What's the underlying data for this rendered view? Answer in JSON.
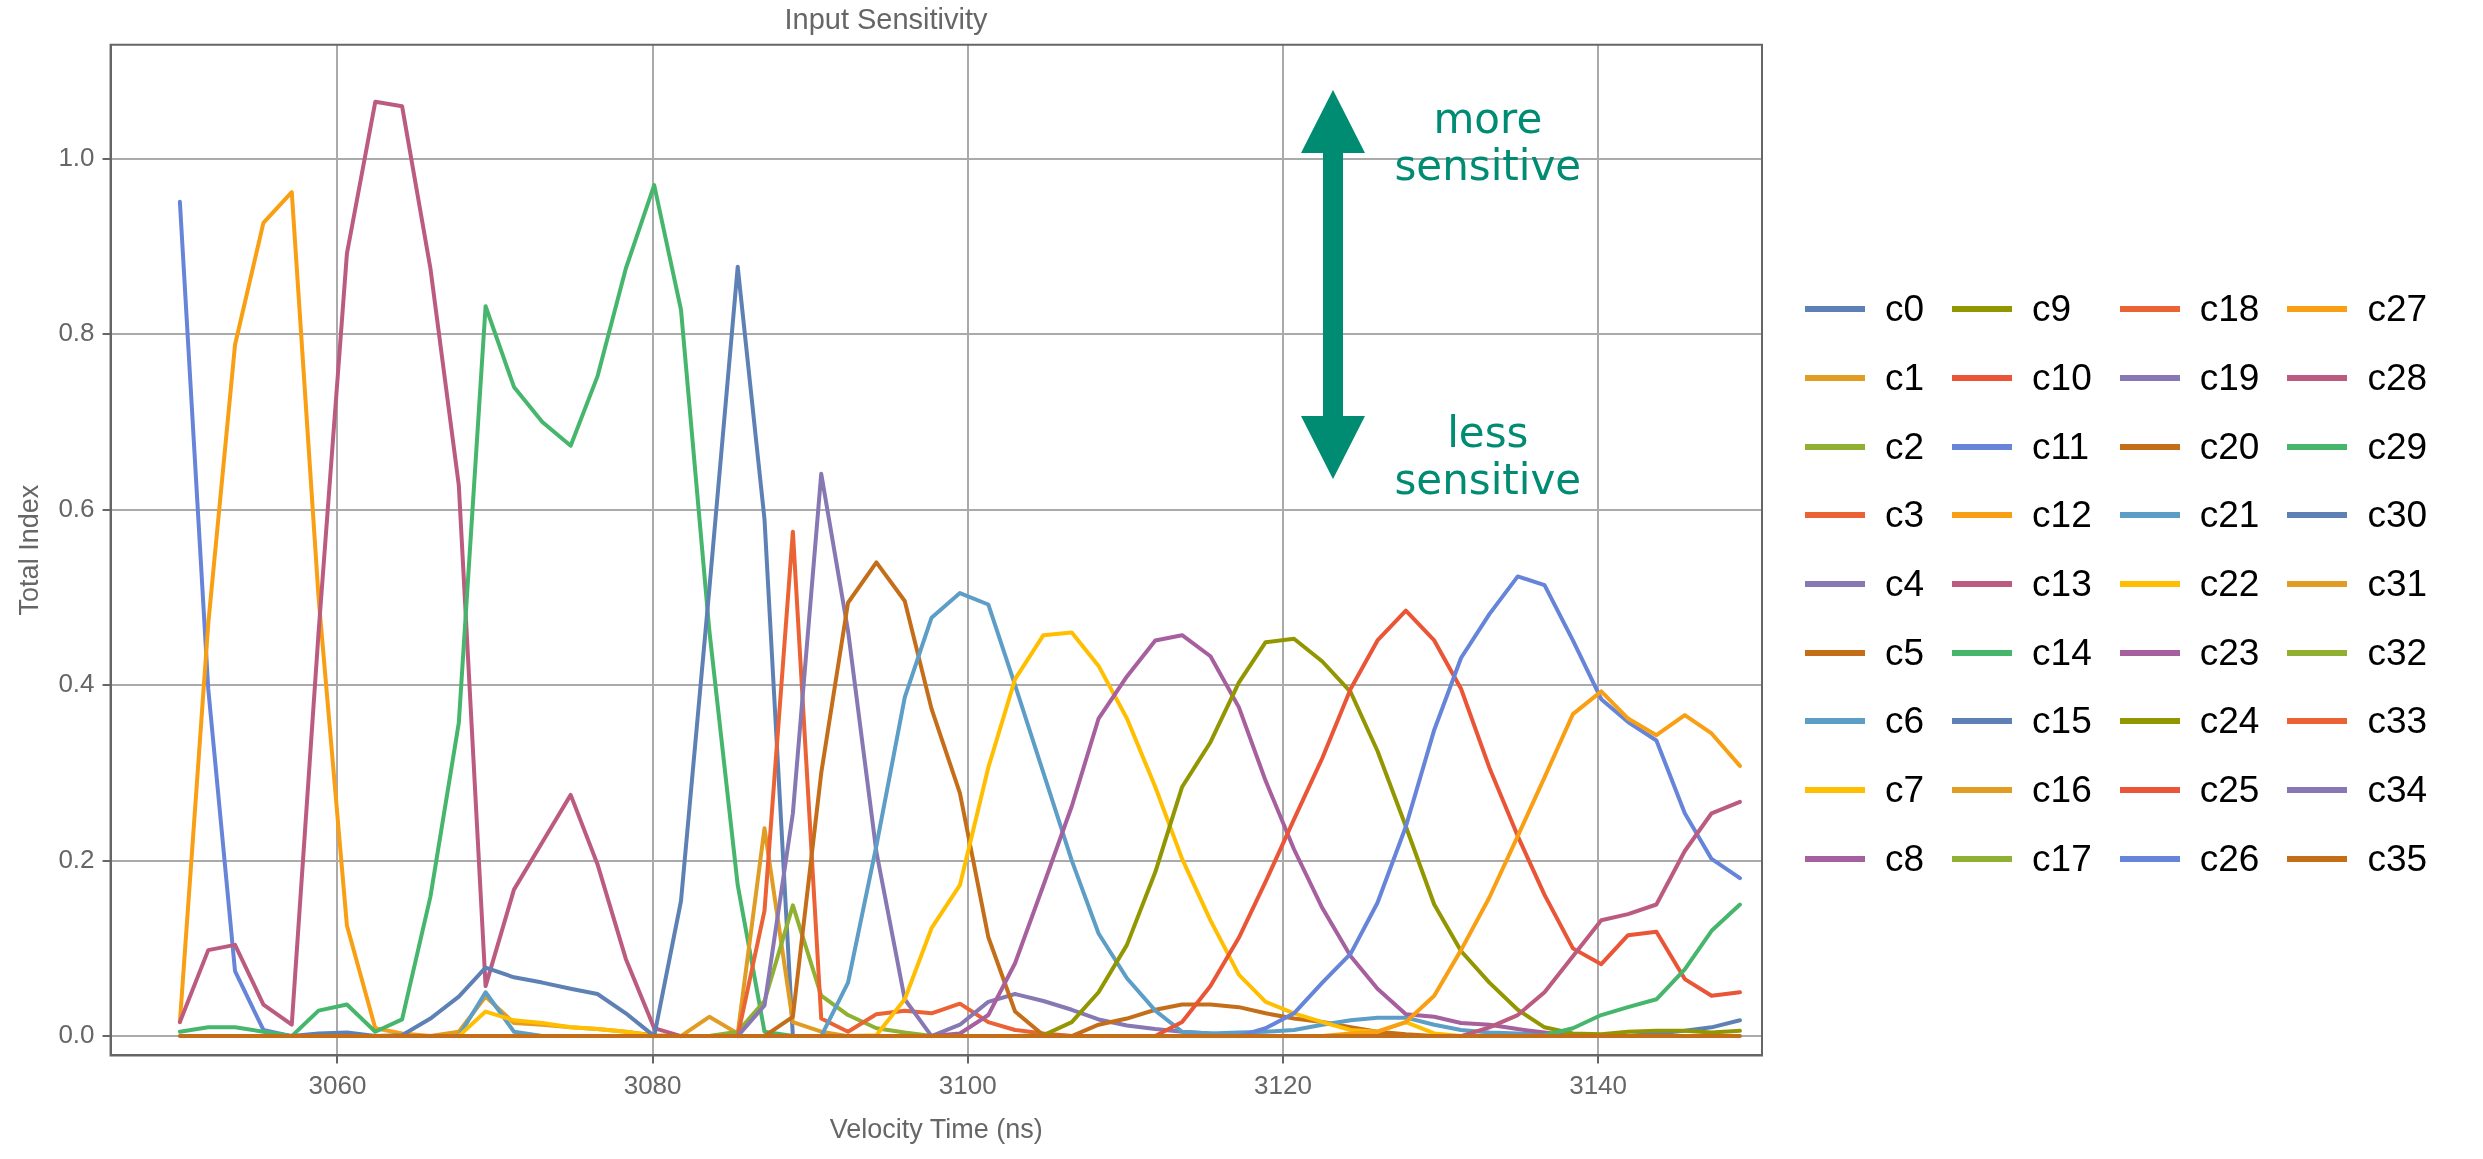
{
  "chart_data": {
    "type": "line",
    "title": "Input Sensitivity",
    "xlabel": "Velocity Time (ns)",
    "ylabel": "Total Index",
    "annotations": [
      "more sensitive",
      "less sensitive"
    ],
    "xlim": [
      3045.6,
      3150.4
    ],
    "xticks": [
      3060,
      3080,
      3100,
      3120,
      3140
    ],
    "ylim": [
      -0.022,
      1.13
    ],
    "yticks": [
      {
        "value": 0,
        "label": "0.0"
      },
      {
        "value": 0.2,
        "label": "0.2"
      },
      {
        "value": 0.4,
        "label": "0.4"
      },
      {
        "value": 0.6,
        "label": "0.6"
      },
      {
        "value": 0.8,
        "label": "0.8"
      },
      {
        "value": 1,
        "label": "1.0"
      }
    ],
    "grid": true,
    "legend": "right",
    "x": [
      3050.0,
      3051.8,
      3053.5,
      3055.3,
      3057.1,
      3058.8,
      3060.6,
      3062.4,
      3064.1,
      3065.9,
      3067.7,
      3069.4,
      3071.2,
      3073.0,
      3074.8,
      3076.5,
      3078.3,
      3080.1,
      3081.8,
      3083.6,
      3085.4,
      3087.1,
      3088.9,
      3090.7,
      3092.4,
      3094.2,
      3096.0,
      3097.7,
      3099.5,
      3101.3,
      3103.0,
      3104.8,
      3106.6,
      3108.3,
      3110.1,
      3111.9,
      3113.6,
      3115.4,
      3117.2,
      3118.9,
      3120.7,
      3122.5,
      3124.3,
      3126.0,
      3127.8,
      3129.6,
      3131.3,
      3133.1,
      3134.9,
      3136.6,
      3138.4,
      3140.2,
      3141.9,
      3143.7,
      3145.5,
      3147.2,
      3149.0
    ],
    "series": [
      {
        "name": "c0",
        "color": "#5e81b5",
        "values": [
          null,
          null,
          null,
          null,
          null,
          null,
          null,
          null,
          null,
          null,
          null,
          null,
          null,
          null,
          null,
          null,
          null,
          null,
          null,
          null,
          null,
          null,
          null,
          null,
          null,
          null,
          null,
          null,
          null,
          null,
          null,
          null,
          null,
          null,
          null,
          null,
          null,
          null,
          null,
          null,
          null,
          null,
          null,
          null,
          null,
          null,
          null,
          null,
          null,
          null,
          null,
          null,
          null,
          null,
          null,
          null,
          null
        ]
      },
      {
        "name": "c1",
        "color": "#e19c24",
        "values": [
          null,
          null,
          null,
          null,
          null,
          null,
          null,
          null,
          null,
          0,
          0.005,
          0.045,
          0.015,
          0.013,
          0.01,
          0.008,
          0.005,
          0.001,
          0,
          null,
          null,
          null,
          null,
          null,
          null,
          null,
          null,
          null,
          null,
          null,
          null,
          null,
          null,
          null,
          null,
          null,
          null,
          null,
          null,
          null,
          null,
          null,
          null,
          null,
          null,
          null,
          null,
          null,
          null,
          null,
          null,
          null,
          null,
          null,
          null,
          null,
          null
        ]
      },
      {
        "name": "c2",
        "color": "#8fb032",
        "values": [
          null,
          null,
          null,
          null,
          null,
          null,
          null,
          null,
          null,
          null,
          null,
          null,
          null,
          null,
          null,
          null,
          null,
          null,
          null,
          null,
          null,
          null,
          null,
          null,
          null,
          null,
          null,
          null,
          null,
          null,
          null,
          null,
          null,
          null,
          null,
          null,
          null,
          null,
          null,
          null,
          null,
          null,
          null,
          null,
          null,
          null,
          null,
          null,
          null,
          null,
          null,
          null,
          null,
          null,
          null,
          null,
          null
        ]
      },
      {
        "name": "c3",
        "color": "#eb6235",
        "values": [
          null,
          null,
          null,
          null,
          null,
          null,
          null,
          null,
          null,
          null,
          null,
          null,
          null,
          null,
          null,
          null,
          null,
          null,
          null,
          null,
          null,
          null,
          null,
          null,
          null,
          null,
          null,
          null,
          null,
          null,
          null,
          null,
          null,
          null,
          null,
          null,
          null,
          null,
          null,
          null,
          null,
          null,
          null,
          null,
          null,
          null,
          null,
          null,
          null,
          null,
          null,
          null,
          null,
          null,
          null,
          null,
          null
        ]
      },
      {
        "name": "c4",
        "color": "#8778b3",
        "values": [
          null,
          null,
          null,
          null,
          null,
          null,
          null,
          null,
          null,
          null,
          null,
          null,
          null,
          null,
          null,
          null,
          null,
          null,
          null,
          null,
          null,
          null,
          null,
          null,
          null,
          null,
          null,
          null,
          null,
          null,
          null,
          null,
          null,
          null,
          null,
          null,
          null,
          null,
          null,
          null,
          null,
          null,
          null,
          null,
          null,
          null,
          null,
          null,
          null,
          null,
          null,
          null,
          null,
          null,
          null,
          null,
          null
        ]
      },
      {
        "name": "c5",
        "color": "#c56e1a",
        "values": [
          null,
          null,
          null,
          null,
          null,
          null,
          null,
          null,
          null,
          null,
          null,
          null,
          null,
          null,
          null,
          null,
          null,
          null,
          null,
          null,
          null,
          null,
          null,
          null,
          null,
          null,
          null,
          null,
          null,
          null,
          null,
          null,
          null,
          null,
          null,
          null,
          null,
          null,
          null,
          null,
          null,
          null,
          null,
          null,
          null,
          null,
          null,
          null,
          null,
          null,
          null,
          null,
          null,
          null,
          null,
          null,
          null
        ]
      },
      {
        "name": "c6",
        "color": "#5d9ec7",
        "values": [
          null,
          null,
          null,
          null,
          null,
          null,
          null,
          null,
          null,
          null,
          0,
          0.05,
          0.005,
          0,
          null,
          null,
          null,
          null,
          null,
          null,
          null,
          null,
          null,
          null,
          null,
          null,
          null,
          null,
          null,
          null,
          null,
          null,
          null,
          null,
          null,
          null,
          null,
          null,
          null,
          null,
          null,
          null,
          null,
          null,
          null,
          null,
          null,
          null,
          null,
          null,
          null,
          null,
          null,
          null,
          null,
          null,
          null
        ]
      },
      {
        "name": "c7",
        "color": "#ffbf00",
        "values": [
          null,
          null,
          null,
          null,
          null,
          null,
          null,
          null,
          null,
          null,
          0,
          0.028,
          0.018,
          0.015,
          0.01,
          0.008,
          0.005,
          0,
          null,
          null,
          null,
          null,
          null,
          null,
          null,
          null,
          null,
          null,
          null,
          null,
          null,
          null,
          null,
          null,
          null,
          null,
          null,
          null,
          null,
          null,
          null,
          null,
          null,
          null,
          null,
          null,
          null,
          null,
          null,
          null,
          null,
          null,
          null,
          null,
          null,
          null,
          null
        ]
      },
      {
        "name": "c8",
        "color": "#a5609d",
        "values": [
          null,
          null,
          null,
          null,
          null,
          null,
          null,
          null,
          null,
          null,
          null,
          null,
          null,
          null,
          null,
          null,
          null,
          null,
          null,
          null,
          null,
          null,
          null,
          null,
          null,
          null,
          null,
          null,
          null,
          null,
          null,
          null,
          null,
          null,
          null,
          null,
          null,
          null,
          null,
          null,
          null,
          null,
          null,
          null,
          null,
          null,
          null,
          null,
          null,
          null,
          null,
          null,
          null,
          null,
          null,
          null,
          null
        ]
      },
      {
        "name": "c9",
        "color": "#929600",
        "values": [
          null,
          null,
          null,
          null,
          null,
          null,
          null,
          null,
          null,
          null,
          null,
          null,
          null,
          null,
          null,
          null,
          null,
          null,
          null,
          null,
          null,
          null,
          null,
          null,
          null,
          null,
          null,
          null,
          null,
          null,
          null,
          null,
          null,
          null,
          null,
          null,
          null,
          null,
          null,
          null,
          null,
          null,
          null,
          null,
          null,
          null,
          null,
          null,
          null,
          null,
          null,
          null,
          null,
          null,
          null,
          null,
          null
        ]
      },
      {
        "name": "c10",
        "color": "#e95536",
        "values": [
          null,
          null,
          null,
          null,
          null,
          null,
          null,
          null,
          null,
          null,
          null,
          null,
          null,
          null,
          null,
          null,
          null,
          null,
          null,
          null,
          null,
          null,
          null,
          null,
          null,
          null,
          null,
          null,
          null,
          null,
          null,
          null,
          null,
          null,
          null,
          null,
          null,
          null,
          null,
          null,
          null,
          null,
          null,
          null,
          null,
          null,
          null,
          null,
          null,
          null,
          null,
          null,
          null,
          null,
          null,
          null,
          null
        ]
      },
      {
        "name": "c11",
        "color": "#6685d9",
        "values": [
          0.951,
          0.396,
          0.074,
          0.007,
          0,
          null,
          null,
          null,
          null,
          null,
          null,
          null,
          null,
          null,
          null,
          null,
          null,
          null,
          null,
          null,
          null,
          null,
          null,
          null,
          null,
          null,
          null,
          null,
          null,
          null,
          null,
          null,
          null,
          null,
          null,
          null,
          null,
          null,
          null,
          null,
          null,
          null,
          null,
          null,
          null,
          null,
          null,
          null,
          null,
          null,
          null,
          null,
          null,
          null,
          null,
          null,
          null
        ]
      },
      {
        "name": "c12",
        "color": "#f89f13",
        "values": [
          0.016,
          0.47,
          0.788,
          0.927,
          0.962,
          0.5,
          0.126,
          0.009,
          0.003,
          0,
          null,
          null,
          null,
          null,
          null,
          null,
          null,
          null,
          null,
          null,
          null,
          null,
          null,
          null,
          null,
          null,
          null,
          null,
          null,
          null,
          null,
          null,
          null,
          null,
          null,
          null,
          null,
          null,
          null,
          null,
          null,
          null,
          null,
          null,
          null,
          null,
          null,
          null,
          null,
          null,
          null,
          null,
          null,
          null,
          null,
          null,
          null
        ]
      },
      {
        "name": "c13",
        "color": "#bc5b80",
        "values": [
          0.016,
          0.098,
          0.104,
          0.036,
          0.013,
          0.46,
          0.892,
          1.065,
          1.06,
          0.875,
          0.628,
          0.057,
          0.167,
          0.221,
          0.275,
          0.196,
          0.088,
          0.009,
          0,
          null,
          null,
          null,
          null,
          null,
          null,
          null,
          null,
          null,
          null,
          null,
          null,
          null,
          null,
          null,
          null,
          null,
          null,
          null,
          null,
          null,
          null,
          null,
          null,
          null,
          null,
          null,
          null,
          null,
          null,
          null,
          null,
          null,
          null,
          null,
          null,
          null,
          null
        ]
      },
      {
        "name": "c14",
        "color": "#47b66d",
        "values": [
          0.005,
          0.01,
          0.01,
          0.005,
          0,
          0.029,
          0.036,
          0.005,
          0.019,
          0.159,
          0.357,
          0.832,
          0.74,
          0.7,
          0.673,
          0.752,
          0.875,
          0.97,
          0.828,
          0.462,
          0.172,
          0.005,
          0,
          null,
          null,
          null,
          null,
          null,
          null,
          null,
          null,
          null,
          null,
          null,
          null,
          null,
          null,
          null,
          null,
          null,
          null,
          null,
          null,
          null,
          null,
          null,
          null,
          null,
          null,
          null,
          null,
          null,
          null,
          null,
          null,
          null,
          null
        ]
      },
      {
        "name": "c15",
        "color": "#5e81b5",
        "values": [
          null,
          null,
          null,
          null,
          0,
          0.003,
          0.004,
          0,
          0.001,
          0.02,
          0.045,
          0.078,
          0.067,
          0.061,
          0.054,
          0.048,
          0.026,
          0,
          0.154,
          0.51,
          0.877,
          0.589,
          0,
          null,
          null,
          null,
          null,
          null,
          null,
          null,
          null,
          null,
          null,
          null,
          null,
          null,
          null,
          null,
          null,
          null,
          null,
          null,
          null,
          null,
          null,
          null,
          null,
          null,
          null,
          null,
          null,
          null,
          0,
          0.003,
          0.006,
          0.01,
          0.018
        ]
      },
      {
        "name": "c16",
        "color": "#e19c24",
        "values": [
          null,
          null,
          null,
          null,
          null,
          null,
          null,
          null,
          null,
          null,
          null,
          null,
          null,
          null,
          null,
          null,
          null,
          null,
          0,
          0.022,
          0.003,
          0.237,
          0.016,
          0.005,
          0,
          null,
          null,
          null,
          null,
          null,
          null,
          null,
          null,
          null,
          null,
          null,
          null,
          null,
          null,
          null,
          null,
          null,
          null,
          null,
          null,
          null,
          null,
          null,
          null,
          null,
          null,
          null,
          null,
          null,
          null,
          null,
          null
        ]
      },
      {
        "name": "c17",
        "color": "#8fb032",
        "values": [
          null,
          null,
          null,
          null,
          null,
          null,
          null,
          null,
          null,
          null,
          null,
          null,
          null,
          null,
          null,
          null,
          null,
          null,
          null,
          0,
          0.005,
          0.04,
          0.149,
          0.046,
          0.024,
          0.009,
          0.004,
          0,
          null,
          null,
          null,
          null,
          null,
          null,
          null,
          null,
          null,
          null,
          null,
          null,
          null,
          null,
          null,
          null,
          null,
          null,
          null,
          null,
          null,
          null,
          null,
          null,
          null,
          null,
          null,
          null,
          null
        ]
      },
      {
        "name": "c18",
        "color": "#eb6235",
        "values": [
          null,
          null,
          null,
          null,
          null,
          null,
          null,
          null,
          null,
          null,
          null,
          null,
          null,
          null,
          null,
          null,
          null,
          null,
          null,
          null,
          0,
          0.143,
          0.575,
          0.02,
          0.005,
          0.025,
          0.029,
          0.026,
          0.037,
          0.016,
          0.007,
          0.003,
          0,
          null,
          null,
          null,
          null,
          null,
          null,
          null,
          null,
          null,
          null,
          null,
          null,
          null,
          null,
          null,
          null,
          null,
          null,
          null,
          null,
          null,
          null,
          null,
          null
        ]
      },
      {
        "name": "c19",
        "color": "#8778b3",
        "values": [
          null,
          null,
          null,
          null,
          null,
          null,
          null,
          null,
          null,
          null,
          null,
          null,
          null,
          null,
          null,
          null,
          null,
          null,
          null,
          null,
          0,
          0.035,
          0.254,
          0.641,
          0.462,
          0.21,
          0.042,
          0,
          0.013,
          0.039,
          0.048,
          0.04,
          0.03,
          0.019,
          0.012,
          0.008,
          0.005,
          0.003,
          0,
          null,
          null,
          null,
          null,
          null,
          null,
          null,
          null,
          null,
          null,
          null,
          null,
          null,
          null,
          null,
          null,
          null,
          null
        ]
      },
      {
        "name": "c20",
        "color": "#c56e1a",
        "values": [
          null,
          null,
          null,
          null,
          null,
          null,
          null,
          null,
          null,
          null,
          null,
          null,
          null,
          null,
          null,
          null,
          null,
          null,
          null,
          null,
          null,
          0,
          0.022,
          0.3,
          0.494,
          0.54,
          0.496,
          0.373,
          0.277,
          0.113,
          0.028,
          0.001,
          0,
          0.013,
          0.02,
          0.03,
          0.036,
          0.036,
          0.033,
          0.026,
          0.02,
          0.016,
          0.01,
          0.005,
          0.002,
          0,
          null,
          null,
          null,
          null,
          null,
          null,
          null,
          null,
          null,
          null,
          null
        ]
      },
      {
        "name": "c21",
        "color": "#5d9ec7",
        "values": [
          null,
          null,
          null,
          null,
          null,
          null,
          null,
          null,
          null,
          null,
          null,
          null,
          null,
          null,
          null,
          null,
          null,
          null,
          null,
          null,
          null,
          null,
          null,
          0,
          0.061,
          0.217,
          0.386,
          0.477,
          0.505,
          0.492,
          0.4,
          0.3,
          0.2,
          0.117,
          0.066,
          0.029,
          0.005,
          0.003,
          0.004,
          0.005,
          0.007,
          0.013,
          0.018,
          0.021,
          0.021,
          0.013,
          0.007,
          0.004,
          0.003,
          0.001,
          0,
          null,
          null,
          null,
          null,
          null,
          null
        ]
      },
      {
        "name": "c22",
        "color": "#ffbf00",
        "values": [
          null,
          null,
          null,
          null,
          null,
          null,
          null,
          null,
          null,
          null,
          null,
          null,
          null,
          null,
          null,
          null,
          null,
          null,
          null,
          null,
          null,
          null,
          null,
          null,
          0,
          0.001,
          0.042,
          0.123,
          0.172,
          0.306,
          0.407,
          0.457,
          0.46,
          0.422,
          0.362,
          0.284,
          0.202,
          0.132,
          0.07,
          0.039,
          0.026,
          0.016,
          0.007,
          0.005,
          0.016,
          0.003,
          0,
          null,
          null,
          null,
          null,
          null,
          null,
          null,
          null,
          null,
          null
        ]
      },
      {
        "name": "c23",
        "color": "#a5609d",
        "values": [
          null,
          null,
          null,
          null,
          null,
          null,
          null,
          null,
          null,
          null,
          null,
          null,
          null,
          null,
          null,
          null,
          null,
          null,
          null,
          null,
          null,
          null,
          null,
          null,
          null,
          null,
          null,
          0,
          0.003,
          0.024,
          0.083,
          0.172,
          0.262,
          0.362,
          0.41,
          0.451,
          0.457,
          0.433,
          0.375,
          0.291,
          0.213,
          0.146,
          0.091,
          0.054,
          0.025,
          0.022,
          0.015,
          0.013,
          0.008,
          0.004,
          0,
          null,
          null,
          null,
          null,
          null,
          null
        ]
      },
      {
        "name": "c24",
        "color": "#929600",
        "values": [
          null,
          null,
          null,
          null,
          null,
          null,
          null,
          null,
          null,
          null,
          null,
          null,
          null,
          null,
          null,
          null,
          null,
          null,
          null,
          null,
          null,
          null,
          null,
          null,
          null,
          null,
          null,
          null,
          null,
          null,
          0,
          0.001,
          0.016,
          0.05,
          0.104,
          0.187,
          0.284,
          0.335,
          0.403,
          0.449,
          0.453,
          0.427,
          0.392,
          0.325,
          0.239,
          0.15,
          0.097,
          0.061,
          0.03,
          0.01,
          0.003,
          0.002,
          0.005,
          0.006,
          0.006,
          0.004,
          0.006
        ]
      },
      {
        "name": "c25",
        "color": "#e95536",
        "values": [
          null,
          null,
          null,
          null,
          null,
          null,
          null,
          null,
          null,
          null,
          null,
          null,
          null,
          null,
          null,
          null,
          null,
          null,
          null,
          null,
          null,
          null,
          null,
          null,
          null,
          null,
          null,
          null,
          null,
          null,
          null,
          null,
          null,
          null,
          null,
          0,
          0.016,
          0.057,
          0.112,
          0.176,
          0.247,
          0.317,
          0.396,
          0.451,
          0.485,
          0.451,
          0.396,
          0.306,
          0.228,
          0.161,
          0.1,
          0.082,
          0.115,
          0.119,
          0.065,
          0.046,
          0.05
        ]
      },
      {
        "name": "c26",
        "color": "#6685d9",
        "values": [
          null,
          null,
          null,
          null,
          null,
          null,
          null,
          null,
          null,
          null,
          null,
          null,
          null,
          null,
          null,
          null,
          null,
          null,
          null,
          null,
          null,
          null,
          null,
          null,
          null,
          null,
          null,
          null,
          null,
          null,
          null,
          null,
          null,
          null,
          null,
          null,
          null,
          null,
          0,
          0.009,
          0.026,
          0.061,
          0.094,
          0.152,
          0.239,
          0.349,
          0.431,
          0.481,
          0.524,
          0.514,
          0.451,
          0.384,
          0.358,
          0.337,
          0.254,
          0.202,
          0.18
        ]
      },
      {
        "name": "c27",
        "color": "#f89f13",
        "values": [
          null,
          null,
          null,
          null,
          null,
          null,
          null,
          null,
          null,
          null,
          null,
          null,
          null,
          null,
          null,
          null,
          null,
          null,
          null,
          null,
          null,
          null,
          null,
          null,
          null,
          null,
          null,
          null,
          null,
          null,
          null,
          null,
          null,
          null,
          null,
          null,
          null,
          null,
          null,
          null,
          null,
          0,
          0.003,
          0.005,
          0.016,
          0.046,
          0.098,
          0.158,
          0.228,
          0.295,
          0.367,
          0.393,
          0.362,
          0.343,
          0.366,
          0.345,
          0.308
        ]
      },
      {
        "name": "c28",
        "color": "#bc5b80",
        "values": [
          null,
          null,
          null,
          null,
          null,
          null,
          null,
          null,
          null,
          null,
          null,
          null,
          null,
          null,
          null,
          null,
          null,
          null,
          null,
          null,
          null,
          null,
          null,
          null,
          null,
          null,
          null,
          null,
          null,
          null,
          null,
          null,
          null,
          null,
          null,
          null,
          null,
          null,
          null,
          null,
          null,
          null,
          null,
          null,
          null,
          null,
          0,
          0.01,
          0.024,
          0.05,
          0.091,
          0.132,
          0.139,
          0.15,
          0.211,
          0.254,
          0.267
        ]
      },
      {
        "name": "c29",
        "color": "#47b66d",
        "values": [
          null,
          null,
          null,
          null,
          null,
          null,
          null,
          null,
          null,
          null,
          null,
          null,
          null,
          null,
          null,
          null,
          null,
          null,
          null,
          null,
          null,
          null,
          null,
          null,
          null,
          null,
          null,
          null,
          null,
          null,
          null,
          null,
          null,
          null,
          null,
          null,
          null,
          null,
          null,
          null,
          null,
          null,
          null,
          null,
          null,
          null,
          null,
          null,
          0,
          0.001,
          0.009,
          0.024,
          0.033,
          0.042,
          0.076,
          0.12,
          0.15
        ]
      },
      {
        "name": "c30",
        "color": "#5e81b5",
        "values": [
          null,
          null,
          null,
          null,
          null,
          null,
          null,
          null,
          null,
          null,
          null,
          null,
          null,
          null,
          null,
          null,
          null,
          null,
          null,
          null,
          null,
          null,
          null,
          null,
          null,
          null,
          null,
          null,
          null,
          null,
          null,
          null,
          null,
          null,
          null,
          null,
          null,
          null,
          null,
          null,
          null,
          null,
          null,
          null,
          null,
          null,
          null,
          null,
          null,
          null,
          null,
          null,
          null,
          null,
          null,
          null,
          null
        ]
      },
      {
        "name": "c31",
        "color": "#e19c24",
        "values": [
          null,
          null,
          null,
          null,
          null,
          null,
          null,
          null,
          null,
          null,
          null,
          null,
          null,
          null,
          null,
          null,
          null,
          null,
          null,
          null,
          null,
          null,
          null,
          null,
          null,
          null,
          null,
          null,
          null,
          null,
          null,
          null,
          null,
          null,
          null,
          null,
          null,
          null,
          null,
          null,
          null,
          null,
          null,
          null,
          null,
          null,
          null,
          null,
          null,
          null,
          null,
          null,
          null,
          null,
          null,
          null,
          null
        ]
      },
      {
        "name": "c32",
        "color": "#8fb032",
        "values": [
          null,
          null,
          null,
          null,
          null,
          null,
          null,
          null,
          null,
          null,
          null,
          null,
          null,
          null,
          null,
          null,
          null,
          null,
          null,
          null,
          null,
          null,
          null,
          null,
          null,
          null,
          null,
          null,
          null,
          null,
          null,
          null,
          null,
          null,
          null,
          null,
          null,
          null,
          null,
          null,
          null,
          null,
          null,
          null,
          null,
          null,
          null,
          null,
          null,
          null,
          null,
          null,
          null,
          null,
          null,
          null,
          null
        ]
      },
      {
        "name": "c33",
        "color": "#eb6235",
        "values": [
          null,
          null,
          null,
          null,
          null,
          null,
          null,
          null,
          null,
          null,
          null,
          null,
          null,
          null,
          null,
          null,
          null,
          null,
          null,
          null,
          null,
          null,
          null,
          null,
          null,
          null,
          null,
          null,
          null,
          null,
          null,
          null,
          null,
          null,
          null,
          null,
          null,
          null,
          null,
          null,
          null,
          null,
          null,
          null,
          null,
          null,
          null,
          null,
          null,
          null,
          null,
          null,
          null,
          null,
          null,
          null,
          null
        ]
      },
      {
        "name": "c34",
        "color": "#8778b3",
        "values": [
          null,
          null,
          null,
          null,
          null,
          null,
          null,
          null,
          null,
          null,
          null,
          null,
          null,
          null,
          null,
          null,
          null,
          null,
          null,
          null,
          null,
          null,
          null,
          null,
          null,
          null,
          null,
          null,
          null,
          null,
          null,
          null,
          null,
          null,
          null,
          null,
          null,
          null,
          null,
          null,
          null,
          null,
          null,
          null,
          null,
          null,
          null,
          null,
          null,
          null,
          null,
          null,
          null,
          null,
          null,
          null,
          null
        ]
      },
      {
        "name": "c35",
        "color": "#c56e1a",
        "values": [
          0,
          0,
          0,
          0,
          0,
          0,
          0,
          0,
          0,
          0,
          0,
          0,
          0,
          0,
          0,
          0,
          0,
          0,
          0,
          0,
          0,
          0,
          0,
          0,
          0,
          0,
          0,
          0,
          0,
          0,
          0,
          0,
          0,
          0,
          0,
          0,
          0,
          0,
          0,
          0,
          0,
          0,
          0,
          0,
          0,
          0,
          0,
          0,
          0,
          0,
          0,
          0,
          0,
          0,
          0,
          0,
          0
        ]
      }
    ]
  }
}
